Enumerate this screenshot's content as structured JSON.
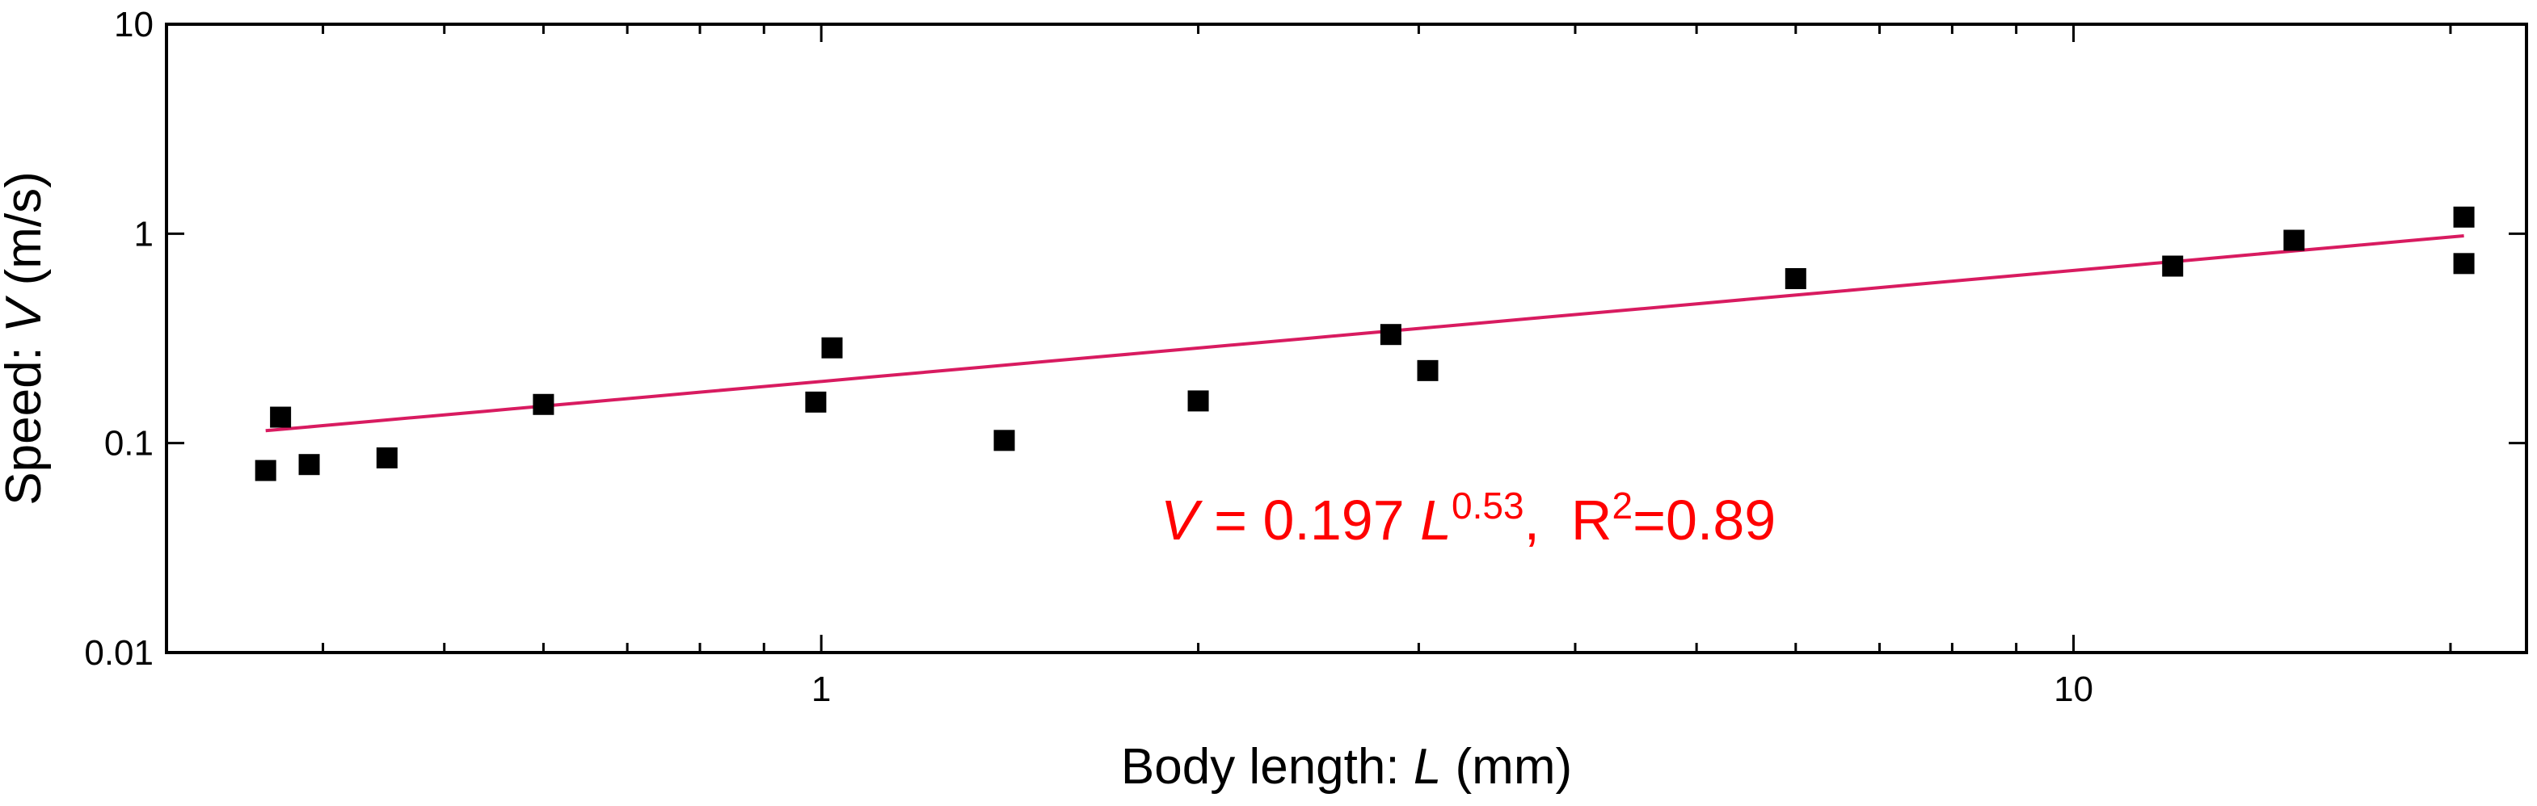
{
  "chart_data": {
    "type": "scatter",
    "title": "",
    "xlabel": {
      "prefix": "Body length: ",
      "var": "L",
      "suffix": " (mm)"
    },
    "ylabel": {
      "prefix": "Speed: ",
      "var": "V",
      "suffix": " (m/s)"
    },
    "xscale": "log",
    "yscale": "log",
    "xlim": [
      0.3,
      23
    ],
    "ylim": [
      0.01,
      10
    ],
    "x_ticks": [
      {
        "value": 1,
        "label": "1"
      },
      {
        "value": 10,
        "label": "10"
      }
    ],
    "y_ticks": [
      {
        "value": 0.01,
        "label": "0.01"
      },
      {
        "value": 0.1,
        "label": "0.1"
      },
      {
        "value": 1,
        "label": "1"
      },
      {
        "value": 10,
        "label": "10"
      }
    ],
    "grid": false,
    "series": [
      {
        "marker": "square",
        "color": "#000000",
        "points": [
          {
            "x": 0.36,
            "y": 0.074
          },
          {
            "x": 0.37,
            "y": 0.133
          },
          {
            "x": 0.39,
            "y": 0.079
          },
          {
            "x": 0.45,
            "y": 0.085
          },
          {
            "x": 0.6,
            "y": 0.153
          },
          {
            "x": 0.99,
            "y": 0.157
          },
          {
            "x": 1.02,
            "y": 0.285
          },
          {
            "x": 1.4,
            "y": 0.103
          },
          {
            "x": 2.0,
            "y": 0.159
          },
          {
            "x": 2.85,
            "y": 0.33
          },
          {
            "x": 3.05,
            "y": 0.222
          },
          {
            "x": 6.0,
            "y": 0.61
          },
          {
            "x": 12.0,
            "y": 0.7
          },
          {
            "x": 15.0,
            "y": 0.93
          },
          {
            "x": 20.5,
            "y": 1.2
          },
          {
            "x": 20.5,
            "y": 0.72
          }
        ]
      }
    ],
    "fit": {
      "color": "#d81b60",
      "coefficient": 0.197,
      "exponent": 0.53,
      "x_range": [
        0.36,
        20.5
      ],
      "equation": {
        "lhs_var": "V",
        "eq": " = 0.197 ",
        "rhs_var": "L",
        "power": "0.53",
        "r_part": ",  R",
        "r_sup": "2",
        "r_tail": "=0.89",
        "color": "#ff0000"
      }
    }
  }
}
